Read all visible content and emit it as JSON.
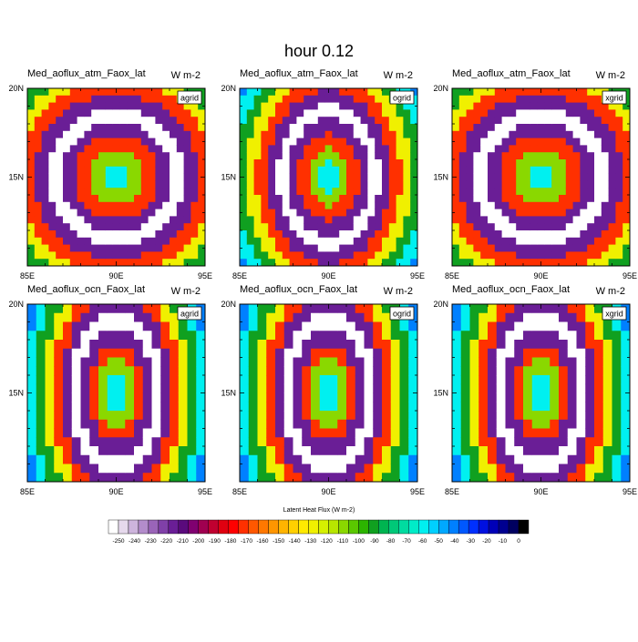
{
  "title": "hour 0.12",
  "colorbar": {
    "title": "Latent Heat Flux (W m-2)",
    "tick_labels": [
      "-250",
      "-240",
      "-230",
      "-220",
      "-210",
      "-200",
      "-190",
      "-180",
      "-170",
      "-160",
      "-150",
      "-140",
      "-130",
      "-120",
      "-110",
      "-100",
      "-90",
      "-80",
      "-70",
      "-60",
      "-50",
      "-40",
      "-30",
      "-20",
      "-10",
      "0"
    ],
    "colors": [
      "#ffffff",
      "#e6d9ec",
      "#cdb4dc",
      "#b38ccb",
      "#9a64b8",
      "#8040a8",
      "#6a1e96",
      "#5a0a7c",
      "#800070",
      "#a00050",
      "#c00030",
      "#e00010",
      "#ff0000",
      "#ff3000",
      "#ff5800",
      "#ff7800",
      "#ff9600",
      "#ffb400",
      "#ffd000",
      "#ffea00",
      "#f0f000",
      "#d6f000",
      "#b8e600",
      "#8ad800",
      "#5ac800",
      "#2cb400",
      "#10a020",
      "#00b450",
      "#00c878",
      "#00dca0",
      "#00ecc8",
      "#00f0f0",
      "#00d0ff",
      "#00a8ff",
      "#0080ff",
      "#0058ff",
      "#0030ff",
      "#0010e0",
      "#0000b8",
      "#000090",
      "#000060",
      "#000000"
    ]
  },
  "chart_data": [
    {
      "type": "heatmap",
      "title": "Med_aoflux_atm_Faox_lat",
      "units": "W m-2",
      "grid_label": "agrid",
      "x_ticks": [
        "85E",
        "90E",
        "95E"
      ],
      "y_ticks": [
        "20N",
        "15N"
      ],
      "xlim": [
        85,
        95
      ],
      "ylim": [
        10,
        20
      ],
      "pattern": "rings",
      "cell_size": 0.4,
      "center": [
        90,
        15
      ]
    },
    {
      "type": "heatmap",
      "title": "Med_aoflux_atm_Faox_lat",
      "units": "W m-2",
      "grid_label": "ogrid",
      "x_ticks": [
        "85E",
        "90E",
        "95E"
      ],
      "y_ticks": [
        "20N",
        "15N"
      ],
      "xlim": [
        85,
        95
      ],
      "ylim": [
        10,
        20
      ],
      "pattern": "rings-stretched",
      "cell_size": 0.4,
      "center": [
        90,
        15
      ]
    },
    {
      "type": "heatmap",
      "title": "Med_aoflux_atm_Faox_lat",
      "units": "W m-2",
      "grid_label": "xgrid",
      "x_ticks": [
        "85E",
        "90E",
        "95E"
      ],
      "y_ticks": [
        "20N",
        "15N"
      ],
      "xlim": [
        85,
        95
      ],
      "ylim": [
        10,
        20
      ],
      "pattern": "rings",
      "cell_size": 0.4,
      "center": [
        90,
        15
      ]
    },
    {
      "type": "heatmap",
      "title": "Med_aoflux_ocn_Faox_lat",
      "units": "W m-2",
      "grid_label": "agrid",
      "x_ticks": [
        "85E",
        "90E",
        "95E"
      ],
      "y_ticks": [
        "20N",
        "15N"
      ],
      "xlim": [
        85,
        95
      ],
      "ylim": [
        10,
        20
      ],
      "pattern": "coarse-rings",
      "cell_size": 0.5,
      "center": [
        90,
        15
      ]
    },
    {
      "type": "heatmap",
      "title": "Med_aoflux_ocn_Faox_lat",
      "units": "W m-2",
      "grid_label": "ogrid",
      "x_ticks": [
        "85E",
        "90E",
        "95E"
      ],
      "y_ticks": [
        "20N",
        "15N"
      ],
      "xlim": [
        85,
        95
      ],
      "ylim": [
        10,
        20
      ],
      "pattern": "coarse-rings",
      "cell_size": 0.5,
      "center": [
        90,
        15
      ]
    },
    {
      "type": "heatmap",
      "title": "Med_aoflux_ocn_Faox_lat",
      "units": "W m-2",
      "grid_label": "xgrid",
      "x_ticks": [
        "85E",
        "90E",
        "95E"
      ],
      "y_ticks": [
        "20N",
        "15N"
      ],
      "xlim": [
        85,
        95
      ],
      "ylim": [
        10,
        20
      ],
      "pattern": "coarse-rings",
      "cell_size": 0.5,
      "center": [
        90,
        15
      ]
    }
  ]
}
